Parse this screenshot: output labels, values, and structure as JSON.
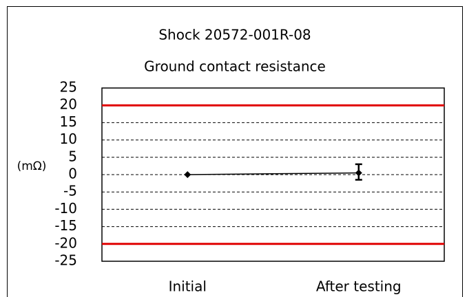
{
  "chart_data": {
    "type": "line",
    "title": "Shock 20572-001R-08",
    "subtitle": "Ground contact resistance",
    "y_label": "(mΩ)",
    "categories": [
      "Initial",
      "After testing"
    ],
    "series": [
      {
        "color": "#000000",
        "values": [
          0,
          0.5
        ],
        "error_low": [
          0,
          2
        ],
        "error_high": [
          0,
          2.5
        ]
      }
    ],
    "limits": [
      20,
      -20
    ],
    "limit_color": "#e00000",
    "ylim": [
      -25,
      25
    ],
    "yticks": [
      -25,
      -20,
      -15,
      -10,
      -5,
      0,
      5,
      10,
      15,
      20,
      25
    ],
    "grid": true
  }
}
